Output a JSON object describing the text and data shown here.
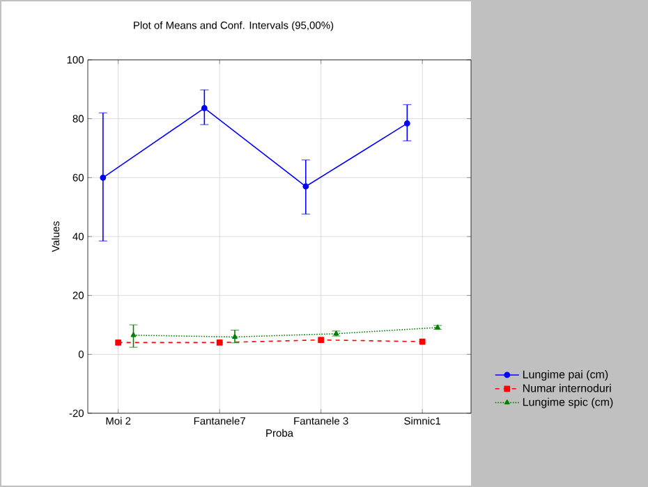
{
  "chart_data": {
    "type": "line",
    "title": "Plot of Means and Conf. Intervals (95,00%)",
    "xlabel": "Proba",
    "ylabel": "Values",
    "categories": [
      "Moi 2",
      "Fantanele7",
      "Fantanele 3",
      "Simnic1"
    ],
    "ylim": [
      -20,
      100
    ],
    "yticks": [
      -20,
      0,
      20,
      40,
      60,
      80,
      100
    ],
    "grid": true,
    "legend": "bottom right",
    "series": [
      {
        "name": "Lungime pai (cm)",
        "color": "#0000ff",
        "marker": "circle",
        "line_style": "solid",
        "values": [
          60,
          83.6,
          57,
          78.4
        ],
        "errors": [
          [
            38.5,
            82
          ],
          [
            78,
            89.8
          ],
          [
            47.6,
            66
          ],
          [
            72.5,
            84.8
          ]
        ]
      },
      {
        "name": "Numar internoduri",
        "color": "#ff0000",
        "marker": "square",
        "line_style": "dashed",
        "values": [
          4.0,
          4.0,
          4.9,
          4.3
        ]
      },
      {
        "name": "Lungime spic (cm)",
        "color": "#008000",
        "marker": "triangle",
        "line_style": "dotted",
        "values": [
          6.5,
          5.9,
          7.0,
          9.1
        ],
        "errors": [
          [
            2.4,
            10
          ],
          [
            3.9,
            8.2
          ],
          [
            6.2,
            7.9
          ],
          [
            8.5,
            9.8
          ]
        ]
      }
    ]
  }
}
